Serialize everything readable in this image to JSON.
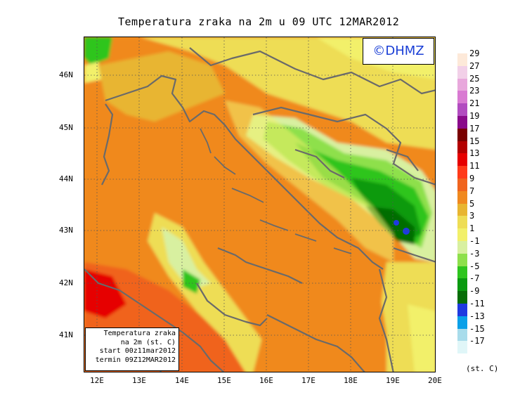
{
  "title": "Temperatura zraka na 2m u 09 UTC 12MAR2012",
  "copyright": "©DHMZ",
  "info_box": {
    "line1": "Temperatura zraka",
    "line2": "na 2m (st. C)",
    "line3": "start 00z11mar2012",
    "line4": "termin 09Z12MAR2012"
  },
  "lat_labels": [
    "46N",
    "45N",
    "44N",
    "43N",
    "42N",
    "41N"
  ],
  "lon_labels": [
    "12E",
    "13E",
    "14E",
    "15E",
    "16E",
    "17E",
    "18E",
    "19E",
    "20E"
  ],
  "legend": {
    "labels": [
      "29",
      "27",
      "25",
      "23",
      "21",
      "19",
      "17",
      "15",
      "13",
      "11",
      "9",
      "7",
      "5",
      "3",
      "1",
      "-1",
      "-3",
      "-5",
      "-7",
      "-9",
      "-11",
      "-13",
      "-15",
      "-17"
    ],
    "colors": [
      "#fde9d9",
      "#f2d0e8",
      "#e8a8dc",
      "#d97ad2",
      "#b24cc0",
      "#8a0a8a",
      "#7a0000",
      "#b30000",
      "#e60000",
      "#ff3b1a",
      "#f0641e",
      "#f0891f",
      "#e8b530",
      "#eedd55",
      "#f2f06a",
      "#d8f0a0",
      "#8ee04c",
      "#2ec51e",
      "#0a9a10",
      "#066d06",
      "#1f3ae0",
      "#0aa0e8",
      "#a8dceb",
      "#e0f6f8"
    ],
    "units": "(st. C)"
  }
}
